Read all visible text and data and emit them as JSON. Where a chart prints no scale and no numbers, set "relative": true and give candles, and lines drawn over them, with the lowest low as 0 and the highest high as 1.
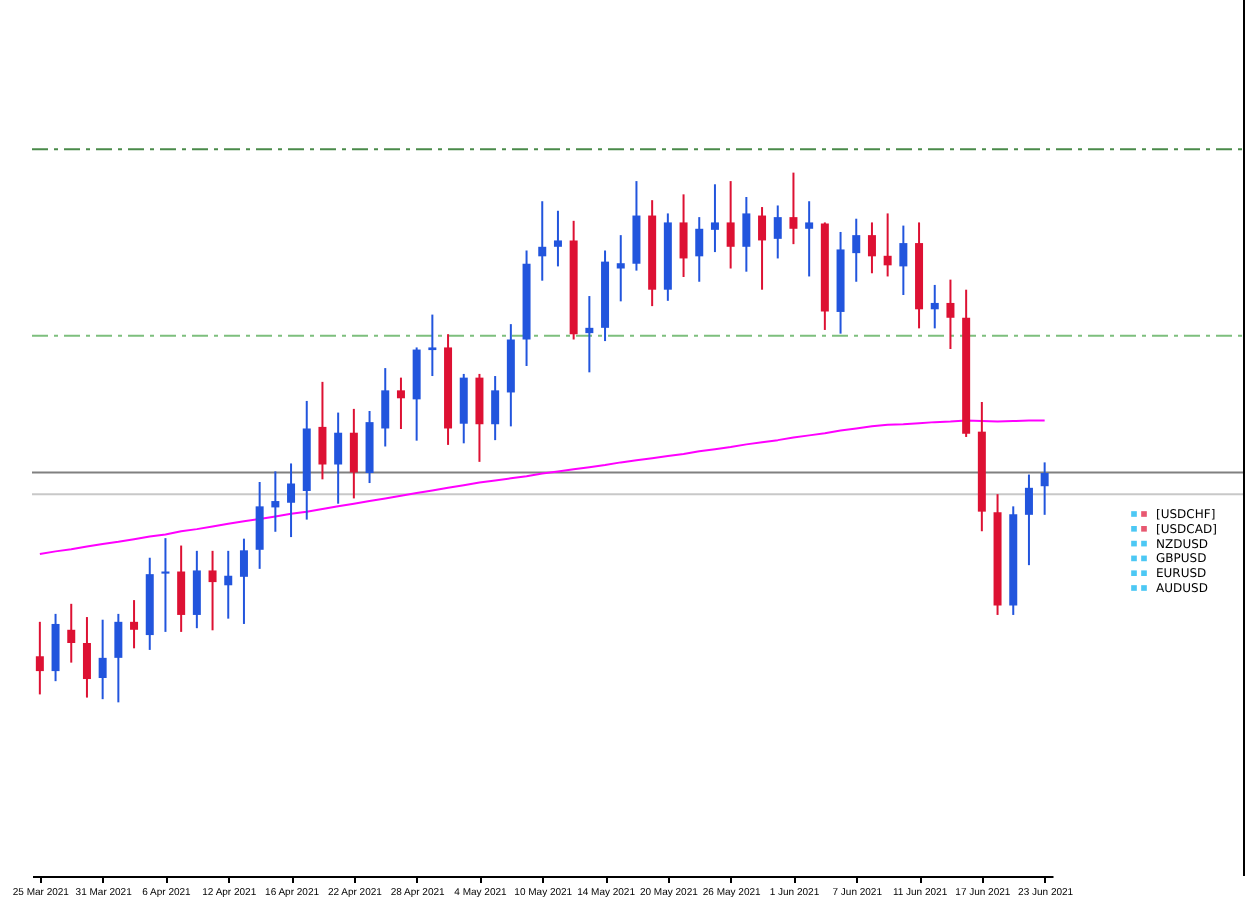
{
  "chart_data": {
    "type": "candlestick",
    "relative": true,
    "categories": [
      "25 Mar 2021",
      null,
      null,
      null,
      "31 Mar 2021",
      null,
      null,
      null,
      "6 Apr 2021",
      null,
      null,
      null,
      "12 Apr 2021",
      null,
      null,
      null,
      "16 Apr 2021",
      null,
      null,
      null,
      "22 Apr 2021",
      null,
      null,
      null,
      "28 Apr 2021",
      null,
      null,
      null,
      "4 May 2021",
      null,
      null,
      null,
      "10 May 2021",
      null,
      null,
      null,
      "14 May 2021",
      null,
      null,
      null,
      "20 May 2021",
      null,
      null,
      null,
      "26 May 2021",
      null,
      null,
      null,
      "1 Jun 2021",
      null,
      null,
      null,
      "7 Jun 2021",
      null,
      null,
      null,
      "11 Jun 2021",
      null,
      null,
      null,
      "17 Jun 2021",
      null,
      null,
      null,
      "23 Jun 2021"
    ],
    "ohlc": [
      [
        0.087,
        0.152,
        0.015,
        0.059
      ],
      [
        0.059,
        0.167,
        0.04,
        0.148
      ],
      [
        0.137,
        0.186,
        0.075,
        0.112
      ],
      [
        0.112,
        0.161,
        0.009,
        0.044
      ],
      [
        0.046,
        0.156,
        0.006,
        0.084
      ],
      [
        0.084,
        0.167,
        0,
        0.152
      ],
      [
        0.152,
        0.193,
        0.102,
        0.137
      ],
      [
        0.127,
        0.273,
        0.099,
        0.242
      ],
      [
        0.243,
        0.31,
        0.133,
        0.247
      ],
      [
        0.247,
        0.296,
        0.133,
        0.165
      ],
      [
        0.165,
        0.286,
        0.14,
        0.249
      ],
      [
        0.249,
        0.286,
        0.136,
        0.227
      ],
      [
        0.221,
        0.286,
        0.158,
        0.239
      ],
      [
        0.237,
        0.309,
        0.148,
        0.287
      ],
      [
        0.288,
        0.416,
        0.252,
        0.37
      ],
      [
        0.368,
        0.436,
        0.322,
        0.38
      ],
      [
        0.377,
        0.451,
        0.312,
        0.413
      ],
      [
        0.399,
        0.569,
        0.345,
        0.517
      ],
      [
        0.52,
        0.605,
        0.421,
        0.449
      ],
      [
        0.449,
        0.547,
        0.375,
        0.509
      ],
      [
        0.509,
        0.554,
        0.385,
        0.434
      ],
      [
        0.433,
        0.55,
        0.414,
        0.529
      ],
      [
        0.517,
        0.631,
        0.483,
        0.589
      ],
      [
        0.589,
        0.613,
        0.516,
        0.574
      ],
      [
        0.572,
        0.67,
        0.494,
        0.666
      ],
      [
        0.665,
        0.732,
        0.616,
        0.67
      ],
      [
        0.67,
        0.695,
        0.486,
        0.517
      ],
      [
        0.526,
        0.62,
        0.489,
        0.613
      ],
      [
        0.613,
        0.62,
        0.454,
        0.525
      ],
      [
        0.525,
        0.616,
        0.495,
        0.589
      ],
      [
        0.585,
        0.714,
        0.521,
        0.685
      ],
      [
        0.685,
        0.853,
        0.635,
        0.828
      ],
      [
        0.842,
        0.946,
        0.796,
        0.86
      ],
      [
        0.86,
        0.928,
        0.823,
        0.872
      ],
      [
        0.872,
        0.909,
        0.685,
        0.695
      ],
      [
        0.697,
        0.767,
        0.623,
        0.707
      ],
      [
        0.707,
        0.853,
        0.682,
        0.832
      ],
      [
        0.819,
        0.882,
        0.757,
        0.829
      ],
      [
        0.828,
        0.984,
        0.815,
        0.919
      ],
      [
        0.919,
        0.948,
        0.748,
        0.779
      ],
      [
        0.779,
        0.923,
        0.758,
        0.906
      ],
      [
        0.906,
        0.959,
        0.803,
        0.838
      ],
      [
        0.842,
        0.916,
        0.794,
        0.894
      ],
      [
        0.892,
        0.978,
        0.85,
        0.906
      ],
      [
        0.906,
        0.984,
        0.819,
        0.86
      ],
      [
        0.86,
        0.954,
        0.813,
        0.923
      ],
      [
        0.919,
        0.935,
        0.779,
        0.872
      ],
      [
        0.875,
        0.938,
        0.838,
        0.916
      ],
      [
        0.916,
        1,
        0.865,
        0.894
      ],
      [
        0.894,
        0.946,
        0.804,
        0.906
      ],
      [
        0.904,
        0.906,
        0.703,
        0.738
      ],
      [
        0.737,
        0.888,
        0.696,
        0.855
      ],
      [
        0.848,
        0.913,
        0.794,
        0.882
      ],
      [
        0.882,
        0.906,
        0.81,
        0.842
      ],
      [
        0.843,
        0.923,
        0.804,
        0.825
      ],
      [
        0.823,
        0.9,
        0.769,
        0.867
      ],
      [
        0.867,
        0.906,
        0.706,
        0.742
      ],
      [
        0.742,
        0.788,
        0.706,
        0.754
      ],
      [
        0.754,
        0.798,
        0.667,
        0.726
      ],
      [
        0.726,
        0.779,
        0.501,
        0.507
      ],
      [
        0.511,
        0.567,
        0.323,
        0.36
      ],
      [
        0.359,
        0.393,
        0.165,
        0.183
      ],
      [
        0.183,
        0.37,
        0.165,
        0.355
      ],
      [
        0.354,
        0.43,
        0.259,
        0.405
      ],
      [
        0.408,
        0.453,
        0.354,
        0.433
      ]
    ],
    "colors": [
      "#dd1133",
      "#2255dd",
      "#dd1133",
      "#dd1133",
      "#2255dd",
      "#2255dd",
      "#dd1133",
      "#2255dd",
      "#2255dd",
      "#dd1133",
      "#2255dd",
      "#dd1133",
      "#2255dd",
      "#2255dd",
      "#2255dd",
      "#2255dd",
      "#2255dd",
      "#2255dd",
      "#dd1133",
      "#2255dd",
      "#dd1133",
      "#2255dd",
      "#2255dd",
      "#dd1133",
      "#2255dd",
      "#2255dd",
      "#dd1133",
      "#2255dd",
      "#dd1133",
      "#2255dd",
      "#2255dd",
      "#2255dd",
      "#2255dd",
      "#2255dd",
      "#dd1133",
      "#2255dd",
      "#2255dd",
      "#2255dd",
      "#2255dd",
      "#dd1133",
      "#2255dd",
      "#dd1133",
      "#2255dd",
      "#2255dd",
      "#dd1133",
      "#2255dd",
      "#dd1133",
      "#2255dd",
      "#dd1133",
      "#2255dd",
      "#dd1133",
      "#2255dd",
      "#2255dd",
      "#dd1133",
      "#dd1133",
      "#2255dd",
      "#dd1133",
      "#2255dd",
      "#dd1133",
      "#dd1133",
      "#dd1133",
      "#dd1133",
      "#2255dd",
      "#2255dd",
      "#2255dd"
    ],
    "series": [
      {
        "type": "line",
        "color": "#ff00ff",
        "values": [
          0.28,
          0.285,
          0.289,
          0.294,
          0.299,
          0.303,
          0.308,
          0.313,
          0.317,
          0.323,
          0.327,
          0.332,
          0.337,
          0.342,
          0.346,
          0.351,
          0.356,
          0.36,
          0.365,
          0.37,
          0.375,
          0.38,
          0.385,
          0.39,
          0.395,
          0.4,
          0.405,
          0.41,
          0.415,
          0.419,
          0.423,
          0.427,
          0.432,
          0.436,
          0.44,
          0.444,
          0.448,
          0.453,
          0.457,
          0.461,
          0.465,
          0.469,
          0.474,
          0.478,
          0.482,
          0.487,
          0.491,
          0.495,
          0.5,
          0.504,
          0.508,
          0.513,
          0.517,
          0.521,
          0.524,
          0.525,
          0.527,
          0.529,
          0.53,
          0.532,
          0.531,
          0.53,
          0.531,
          0.532,
          0.532
        ]
      }
    ],
    "ref_lines": [
      {
        "axis": "y",
        "value": 1.044,
        "color": "#4a8a4a",
        "line_style": "dashed"
      },
      {
        "axis": "y",
        "value": 0.692,
        "color": "#7dbf7d",
        "line_style": "dashed"
      },
      {
        "axis": "y",
        "value": 0.434,
        "color": "#808080",
        "line_style": "solid"
      },
      {
        "axis": "y",
        "value": 0.393,
        "color": "#c8c8c8",
        "line_style": "solid"
      }
    ],
    "annotations": [
      "[USDCHF]",
      "[USDCAD]",
      "NZDUSD",
      "GBPUSD",
      "EURUSD",
      "AUDUSD"
    ]
  }
}
